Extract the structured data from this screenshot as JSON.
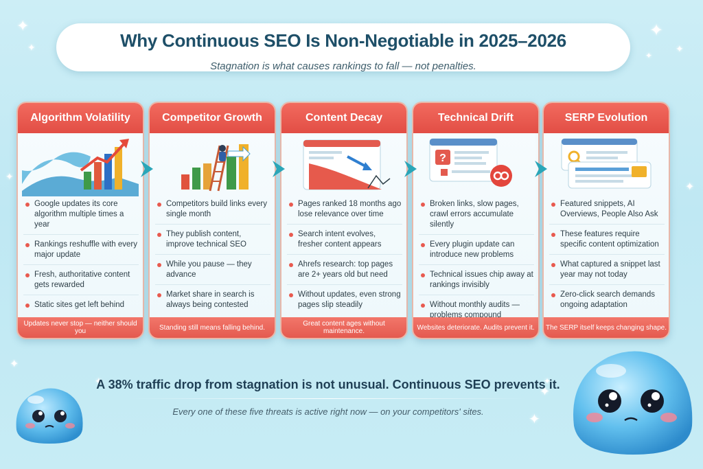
{
  "header": {
    "title": "Why Continuous SEO Is Non-Negotiable in 2025–2026",
    "subtitle": "Stagnation is what causes rankings to fall — not penalties."
  },
  "cards": [
    {
      "title": "Algorithm Volatility",
      "items": [
        "Google updates its core algorithm multiple times a year",
        "Rankings reshuffle with every major update",
        "Fresh, authoritative content gets rewarded",
        "Static sites get left behind"
      ],
      "footer": "Updates never stop — neither should you"
    },
    {
      "title": "Competitor Growth",
      "items": [
        "Competitors build links every single month",
        "They publish content, improve technical SEO",
        "While you pause — they advance",
        "Market share in search is always being contested"
      ],
      "footer": "Standing still means falling behind."
    },
    {
      "title": "Content Decay",
      "items": [
        "Pages ranked 18 months ago lose relevance over time",
        "Search intent evolves, fresher content appears",
        "Ahrefs research: top pages are 2+ years old but need",
        "Without updates, even strong pages slip steadily"
      ],
      "footer": "Great content ages without maintenance."
    },
    {
      "title": "Technical Drift",
      "items": [
        "Broken links, slow pages, crawl errors accumulate silently",
        "Every plugin update can introduce new problems",
        "Technical issues chip away at rankings invisibly",
        "Without monthly audits — problems compound"
      ],
      "footer": "Websites deteriorate. Audits prevent it."
    },
    {
      "title": "SERP Evolution",
      "items": [
        "Featured snippets, AI Overviews, People Also Ask",
        "These features require specific content optimization",
        "What captured a snippet last year may not today",
        "Zero-click search demands ongoing adaptation"
      ],
      "footer": "The SERP itself keeps changing shape."
    }
  ],
  "banner": {
    "main": "A 38% traffic drop from stagnation is not unusual. Continuous SEO prevents it.",
    "sub": "Every one  of these five threats is active right now — on your competitors' sites."
  },
  "colors": {
    "accent_red": "#e8544a",
    "title_navy": "#1e4f68",
    "arrow_teal": "#2aa6b8",
    "background": "#c6ecf5"
  },
  "icons": {
    "card1": "wave-bar-chart-icon",
    "card2": "ladder-climber-icon",
    "card3": "declining-page-icon",
    "card4": "broken-link-browser-icon",
    "card5": "serp-search-icon"
  }
}
